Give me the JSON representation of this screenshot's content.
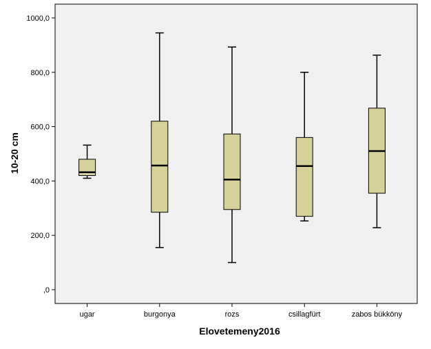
{
  "chart_data": {
    "type": "box",
    "xlabel": "Elovetemeny2016",
    "ylabel": "10-20 cm",
    "ylim": [
      0,
      1000
    ],
    "yticks": [
      0,
      200,
      400,
      600,
      800,
      1000
    ],
    "ytick_labels": [
      ",0",
      "200,0",
      "400,0",
      "600,0",
      "800,0",
      "1000,0"
    ],
    "categories": [
      "ugar",
      "burgonya",
      "rozs",
      "csillagfürt",
      "zabos bükköny"
    ],
    "boxes": [
      {
        "category": "ugar",
        "min": 410,
        "q1": 420,
        "median": 432,
        "q3": 480,
        "max": 532
      },
      {
        "category": "burgonya",
        "min": 155,
        "q1": 285,
        "median": 457,
        "q3": 620,
        "max": 945
      },
      {
        "category": "rozs",
        "min": 100,
        "q1": 295,
        "median": 405,
        "q3": 573,
        "max": 893
      },
      {
        "category": "csillagfürt",
        "min": 253,
        "q1": 270,
        "median": 455,
        "q3": 560,
        "max": 800
      },
      {
        "category": "zabos bükköny",
        "min": 228,
        "q1": 355,
        "median": 510,
        "q3": 668,
        "max": 863
      }
    ],
    "box_color": "#d6d09a",
    "plot_background": "#f0f0f0",
    "grid": false,
    "legend": "none"
  }
}
